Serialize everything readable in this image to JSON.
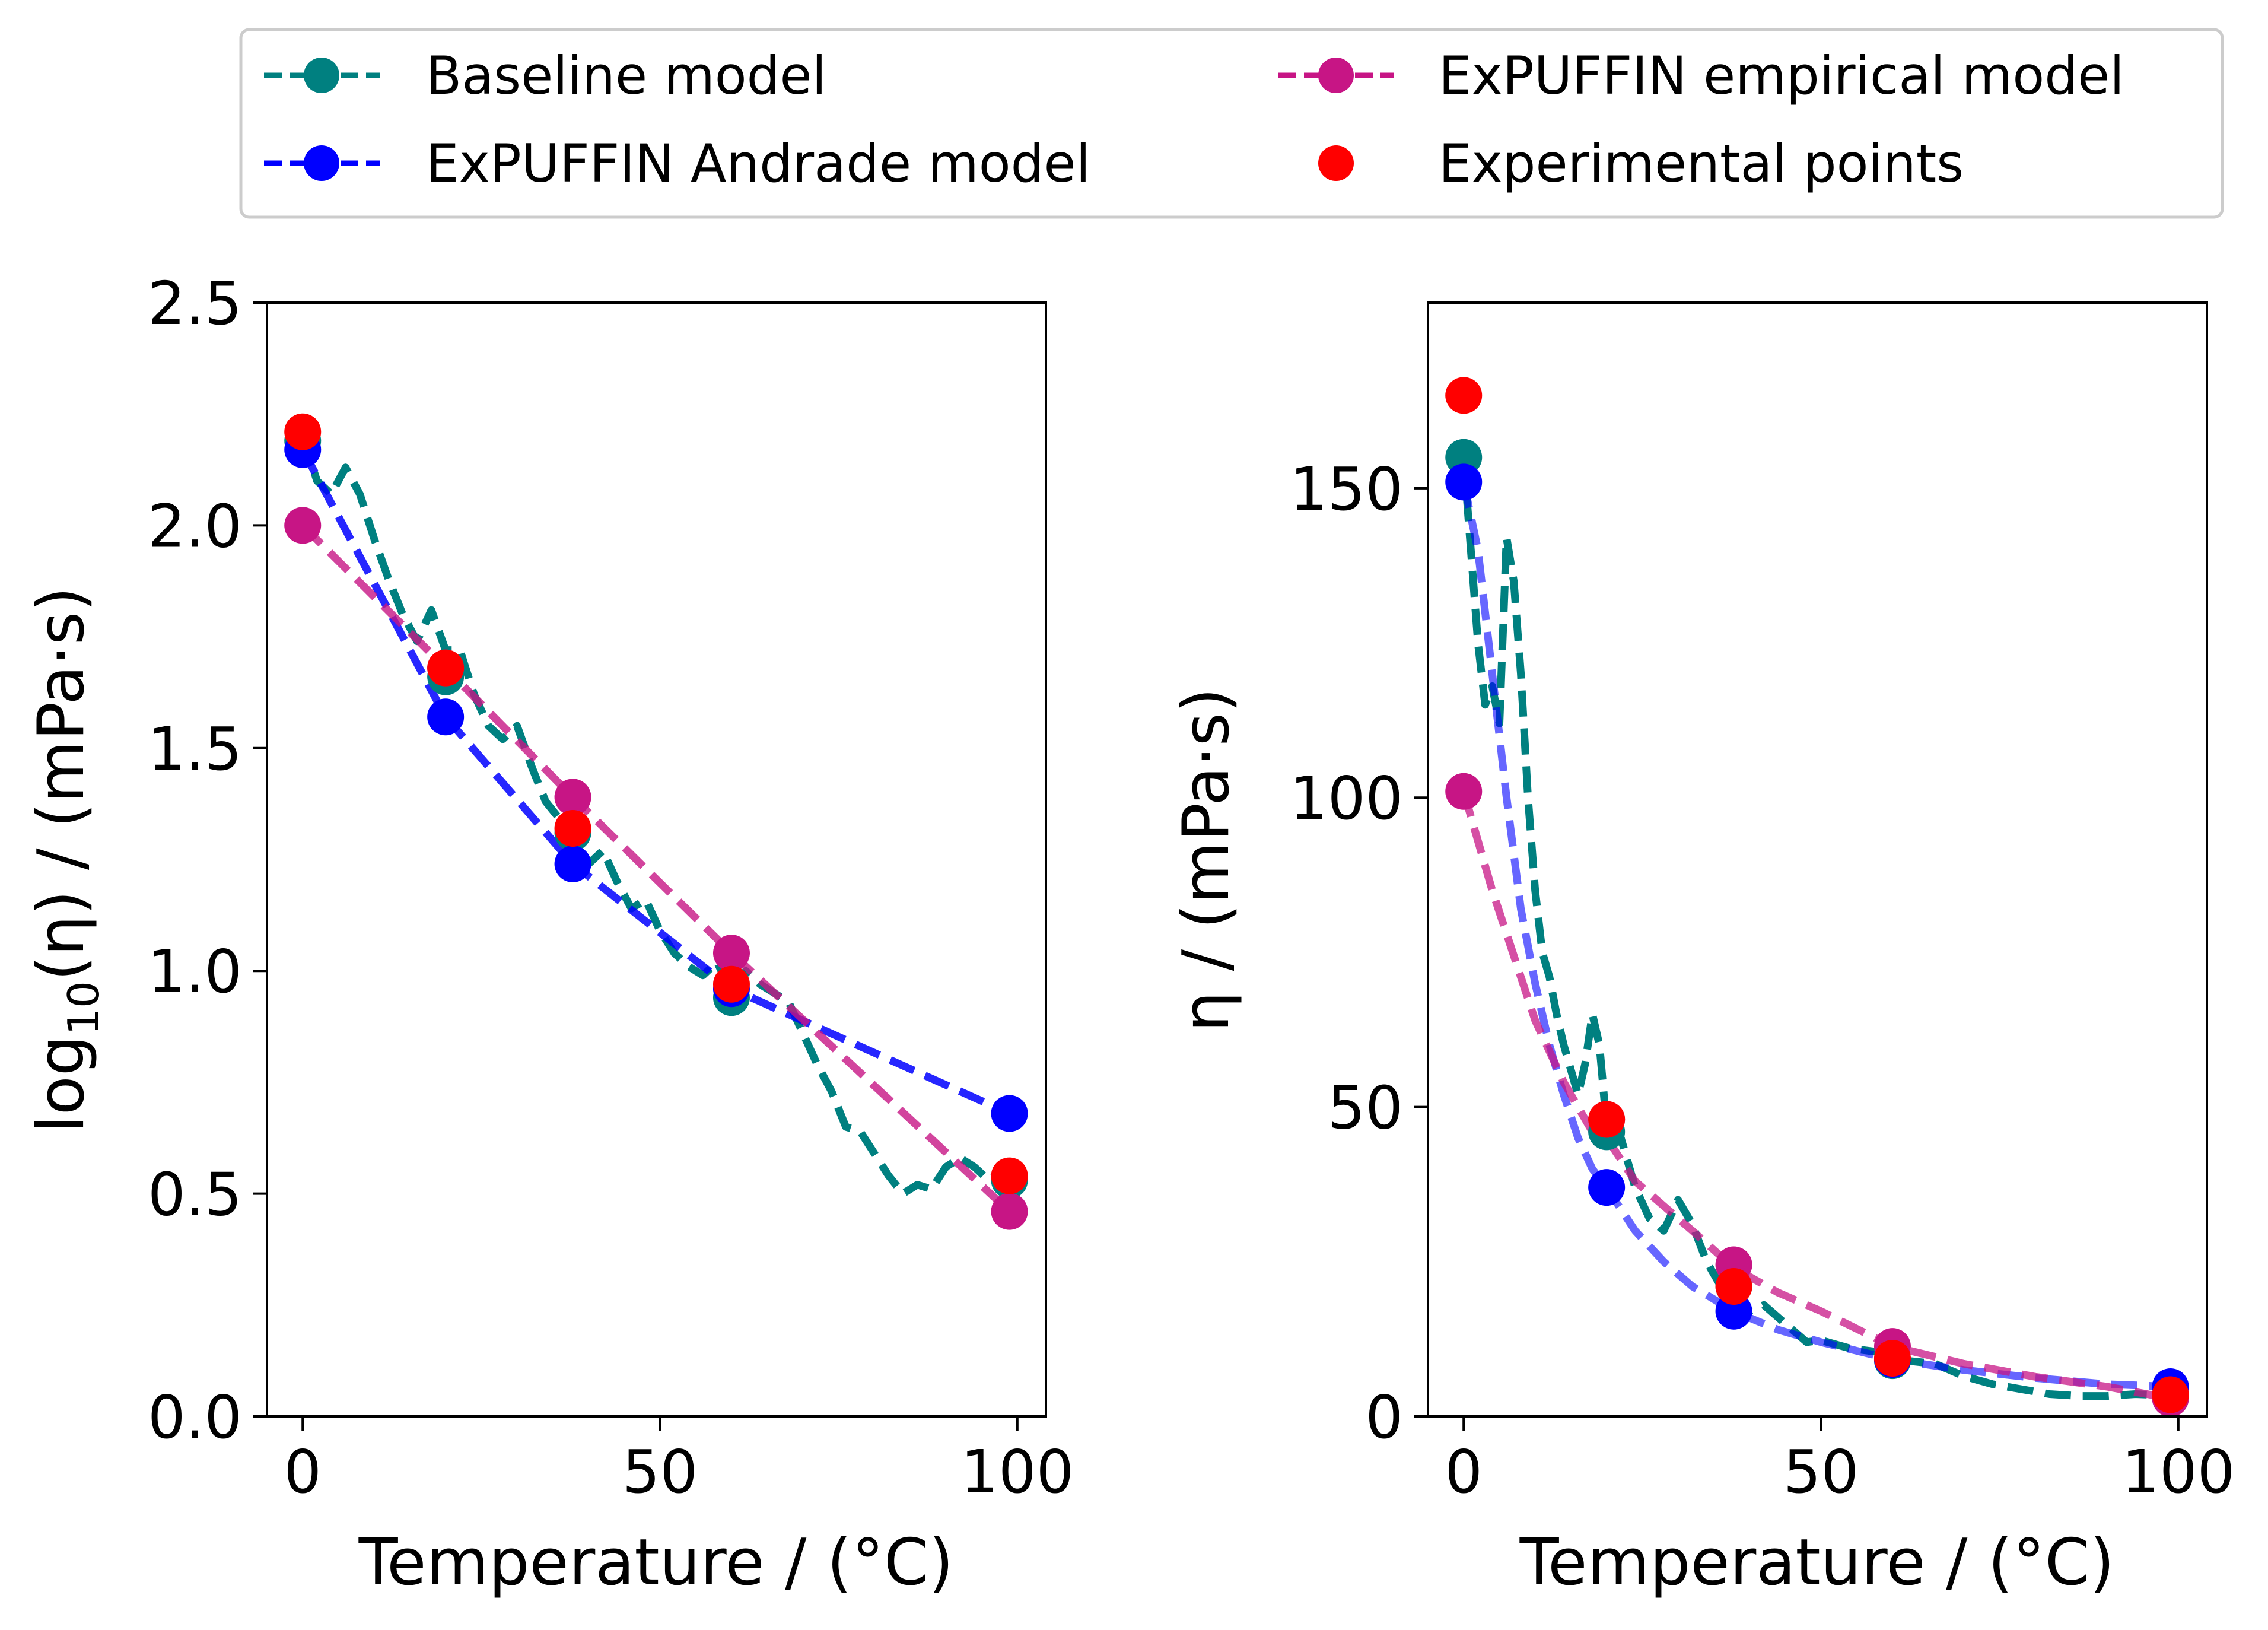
{
  "colors": {
    "baseline": "#008080",
    "andrade": "#0000ff",
    "empirical": "#c71585",
    "experimental": "#ff0000"
  },
  "legend": {
    "items": [
      {
        "label": "Baseline model",
        "series": "baseline"
      },
      {
        "label": "ExPUFFIN empirical model",
        "series": "empirical"
      },
      {
        "label": "ExPUFFIN Andrade model",
        "series": "andrade"
      },
      {
        "label": "Experimental points",
        "series": "experimental"
      }
    ]
  },
  "chart_data": [
    {
      "type": "line",
      "name": "log-viscosity",
      "xlabel": "Temperature / (°C)",
      "ylabel_main": "log",
      "ylabel_sub": "10",
      "ylabel_rest": "(η) / (mPa·s)",
      "xlim": [
        -5,
        104
      ],
      "ylim": [
        0,
        2.5
      ],
      "xticks": [
        0,
        50,
        100
      ],
      "xtick_labels": [
        "0",
        "50",
        "100"
      ],
      "yticks": [
        0,
        0.5,
        1.0,
        1.5,
        2.0,
        2.5
      ],
      "ytick_labels": [
        "0.0",
        "0.5",
        "1.0",
        "1.5",
        "2.0",
        "2.5"
      ],
      "series": [
        {
          "key": "baseline",
          "name": "Baseline model",
          "style": "dashed-line",
          "x": [
            0,
            2,
            4,
            6,
            8,
            10,
            12,
            14,
            16,
            18,
            20,
            22,
            24,
            26,
            28,
            30,
            32,
            34,
            36,
            38,
            40,
            42,
            44,
            46,
            48,
            50,
            52,
            54,
            56,
            58,
            60,
            62,
            64,
            66,
            68,
            70,
            72,
            74,
            76,
            78,
            80,
            82,
            84,
            86,
            88,
            90,
            92,
            94,
            96,
            98
          ],
          "y": [
            2.2,
            2.1,
            2.07,
            2.13,
            2.07,
            1.97,
            1.88,
            1.8,
            1.74,
            1.81,
            1.72,
            1.72,
            1.62,
            1.55,
            1.52,
            1.55,
            1.46,
            1.38,
            1.34,
            1.3,
            1.24,
            1.27,
            1.2,
            1.14,
            1.16,
            1.09,
            1.04,
            1.01,
            0.99,
            1.02,
            0.95,
            1.0,
            0.97,
            0.95,
            0.93,
            0.86,
            0.79,
            0.73,
            0.65,
            0.64,
            0.59,
            0.54,
            0.5,
            0.52,
            0.51,
            0.56,
            0.58,
            0.56,
            0.53,
            0.55
          ]
        },
        {
          "key": "andrade",
          "name": "ExPUFFIN Andrade model",
          "style": "dashed-line",
          "x": [
            0,
            20,
            37.8,
            60,
            98.9
          ],
          "y": [
            2.17,
            1.57,
            1.24,
            0.96,
            0.68
          ]
        },
        {
          "key": "empirical",
          "name": "ExPUFFIN empirical model",
          "style": "dashed-line",
          "x": [
            0,
            20,
            37.8,
            60,
            98.9
          ],
          "y": [
            2.0,
            1.68,
            1.39,
            1.04,
            0.46
          ]
        },
        {
          "key": "baseline",
          "name": "Baseline model points",
          "style": "markers",
          "x": [
            0,
            20,
            37.8,
            60,
            98.9
          ],
          "y": [
            2.19,
            1.66,
            1.31,
            0.94,
            0.53
          ]
        },
        {
          "key": "andrade",
          "name": "ExPUFFIN Andrade model points",
          "style": "markers",
          "x": [
            0,
            20,
            37.8,
            60,
            98.9
          ],
          "y": [
            2.17,
            1.57,
            1.24,
            0.96,
            0.68
          ]
        },
        {
          "key": "empirical",
          "name": "ExPUFFIN empirical model points",
          "style": "markers",
          "x": [
            0,
            20,
            37.8,
            60,
            98.9
          ],
          "y": [
            2.0,
            1.68,
            1.39,
            1.04,
            0.46
          ]
        },
        {
          "key": "experimental",
          "name": "Experimental points",
          "style": "markers",
          "x": [
            0,
            20,
            37.8,
            60,
            98.9
          ],
          "y": [
            2.21,
            1.68,
            1.32,
            0.97,
            0.54
          ]
        }
      ]
    },
    {
      "type": "line",
      "name": "viscosity",
      "xlabel": "Temperature / (°C)",
      "ylabel": "η / (mPa·s)",
      "xlim": [
        -5,
        104
      ],
      "ylim": [
        0,
        180
      ],
      "xticks": [
        0,
        50,
        100
      ],
      "xtick_labels": [
        "0",
        "50",
        "100"
      ],
      "yticks": [
        0,
        50,
        100,
        150
      ],
      "ytick_labels": [
        "0",
        "50",
        "100",
        "150"
      ],
      "series": [
        {
          "key": "baseline",
          "name": "Baseline model",
          "style": "dashed-line",
          "x": [
            0,
            1,
            2,
            3,
            4,
            5,
            6,
            7,
            8,
            9,
            10,
            11,
            12,
            13,
            14,
            15,
            16,
            17,
            18,
            19,
            20,
            22,
            24,
            26,
            28,
            30,
            32,
            34,
            36,
            38,
            40,
            42,
            44,
            46,
            48,
            50,
            54,
            58,
            62,
            66,
            70,
            74,
            78,
            82,
            86,
            90,
            94,
            98
          ],
          "y": [
            155,
            140,
            125,
            115,
            118,
            112,
            142,
            135,
            120,
            100,
            85,
            75,
            71,
            65,
            60,
            56,
            52,
            57,
            65,
            60,
            47,
            45,
            37,
            32,
            30,
            35,
            31,
            25,
            21,
            20,
            17,
            18,
            16,
            14,
            12,
            12.3,
            11,
            10.4,
            9,
            8.5,
            6.5,
            5.2,
            4.4,
            3.6,
            3.3,
            3.3,
            3.6,
            3.4
          ]
        },
        {
          "key": "andrade",
          "name": "ExPUFFIN Andrade model",
          "style": "dashed-line",
          "x": [
            0,
            2,
            4,
            6,
            8,
            10,
            12,
            14,
            16,
            18,
            20,
            24,
            28,
            32,
            37.8,
            44,
            50,
            60,
            70,
            80,
            90,
            98.9
          ],
          "y": [
            151,
            140,
            120,
            100,
            82,
            70,
            60,
            52,
            45,
            40,
            37,
            30,
            25,
            21,
            17,
            14,
            12,
            9.2,
            7.5,
            6.2,
            5.2,
            4.8
          ]
        },
        {
          "key": "empirical",
          "name": "ExPUFFIN empirical model",
          "style": "dashed-line",
          "x": [
            0,
            2,
            4,
            6,
            8,
            10,
            12,
            14,
            16,
            18,
            20,
            24,
            28,
            32,
            37.8,
            44,
            50,
            60,
            70,
            80,
            90,
            98.9
          ],
          "y": [
            101,
            93,
            85,
            78,
            71,
            64,
            59,
            54,
            50,
            46,
            45,
            38,
            34,
            30,
            24,
            20,
            17,
            11.3,
            8.5,
            6.4,
            4.8,
            2.9
          ]
        },
        {
          "key": "baseline",
          "name": "Baseline model points",
          "style": "markers",
          "x": [
            0,
            20,
            37.8,
            60,
            98.9
          ],
          "y": [
            155,
            46,
            21,
            9,
            3.4
          ]
        },
        {
          "key": "andrade",
          "name": "ExPUFFIN Andrade model points",
          "style": "markers",
          "x": [
            0,
            20,
            37.8,
            60,
            98.9
          ],
          "y": [
            151,
            37,
            17,
            9.2,
            4.8
          ]
        },
        {
          "key": "empirical",
          "name": "ExPUFFIN empirical model points",
          "style": "markers",
          "x": [
            0,
            20,
            37.8,
            60,
            98.9
          ],
          "y": [
            101,
            48,
            24.5,
            11.3,
            2.9
          ]
        },
        {
          "key": "experimental",
          "name": "Experimental points",
          "style": "markers",
          "x": [
            0,
            20,
            37.8,
            60,
            98.9
          ],
          "y": [
            165,
            48,
            21,
            9.4,
            3.5
          ]
        }
      ]
    }
  ]
}
